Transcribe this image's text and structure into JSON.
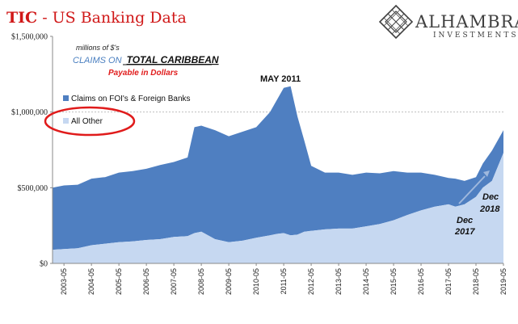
{
  "header": {
    "title_bold": "TIC",
    "title_rest": " - US Banking Data",
    "logo_name": "ALHAMBRA",
    "logo_sub": "INVESTMENTS"
  },
  "colors": {
    "foi_series": "#4f7fc1",
    "other_series": "#c6d8f1",
    "title_red": "#d01818",
    "circle_red": "#e01b1b",
    "gridline": "#bfbfbf",
    "arrow": "#9fb8dd"
  },
  "chart_data": {
    "type": "area",
    "stacked": true,
    "units_note": "millions of $'s",
    "subtitle_prefix": "CLAIMS ON",
    "subtitle_main": "TOTAL CARIBBEAN",
    "subtitle_note": "Payable in Dollars",
    "yticks": [
      "$0",
      "$500,000",
      "$1,000,000",
      "$1,500,000"
    ],
    "ytick_values": [
      0,
      500000,
      1000000,
      1500000
    ],
    "ylim": [
      0,
      1500000
    ],
    "xlim": [
      "2002-12",
      "2019-05"
    ],
    "xtick_labels": [
      "2003-05",
      "2004-05",
      "2005-05",
      "2006-05",
      "2007-05",
      "2008-05",
      "2009-05",
      "2010-05",
      "2011-05",
      "2012-05",
      "2013-05",
      "2014-05",
      "2015-05",
      "2016-05",
      "2017-05",
      "2018-05",
      "2019-05"
    ],
    "legend": [
      {
        "name": "Claims on FOI's & Foreign Banks",
        "color": "#4f7fc1"
      },
      {
        "name": "All Other",
        "color": "#c6d8f1"
      }
    ],
    "x": [
      "2002-12",
      "2003-05",
      "2003-11",
      "2004-05",
      "2004-11",
      "2005-05",
      "2005-11",
      "2006-05",
      "2006-11",
      "2007-05",
      "2007-11",
      "2008-02",
      "2008-05",
      "2008-11",
      "2009-05",
      "2009-11",
      "2010-05",
      "2010-11",
      "2011-02",
      "2011-05",
      "2011-08",
      "2011-11",
      "2012-02",
      "2012-05",
      "2012-11",
      "2013-05",
      "2013-11",
      "2014-05",
      "2014-11",
      "2015-05",
      "2015-11",
      "2016-05",
      "2016-11",
      "2017-05",
      "2017-08",
      "2017-12",
      "2018-05",
      "2018-08",
      "2018-12",
      "2019-05"
    ],
    "series": [
      {
        "name": "All Other",
        "values": [
          90000,
          95000,
          100000,
          120000,
          130000,
          140000,
          145000,
          155000,
          160000,
          175000,
          180000,
          200000,
          210000,
          160000,
          140000,
          150000,
          170000,
          185000,
          195000,
          200000,
          185000,
          190000,
          210000,
          215000,
          225000,
          230000,
          230000,
          245000,
          260000,
          285000,
          320000,
          350000,
          375000,
          390000,
          375000,
          390000,
          440000,
          500000,
          545000,
          730000
        ]
      },
      {
        "name": "Claims on FOI's & Foreign Banks",
        "values": [
          410000,
          420000,
          420000,
          440000,
          440000,
          460000,
          465000,
          470000,
          490000,
          495000,
          520000,
          700000,
          700000,
          720000,
          700000,
          720000,
          730000,
          815000,
          885000,
          960000,
          985000,
          780000,
          600000,
          430000,
          375000,
          370000,
          355000,
          355000,
          335000,
          325000,
          280000,
          250000,
          210000,
          175000,
          185000,
          155000,
          130000,
          160000,
          200000,
          150000
        ]
      }
    ],
    "annotations": [
      {
        "text": "MAY 2011"
      },
      {
        "text": "Dec 2017",
        "line1": "Dec",
        "line2": "2017"
      },
      {
        "text": "Dec 2018",
        "line1": "Dec",
        "line2": "2018"
      }
    ]
  }
}
